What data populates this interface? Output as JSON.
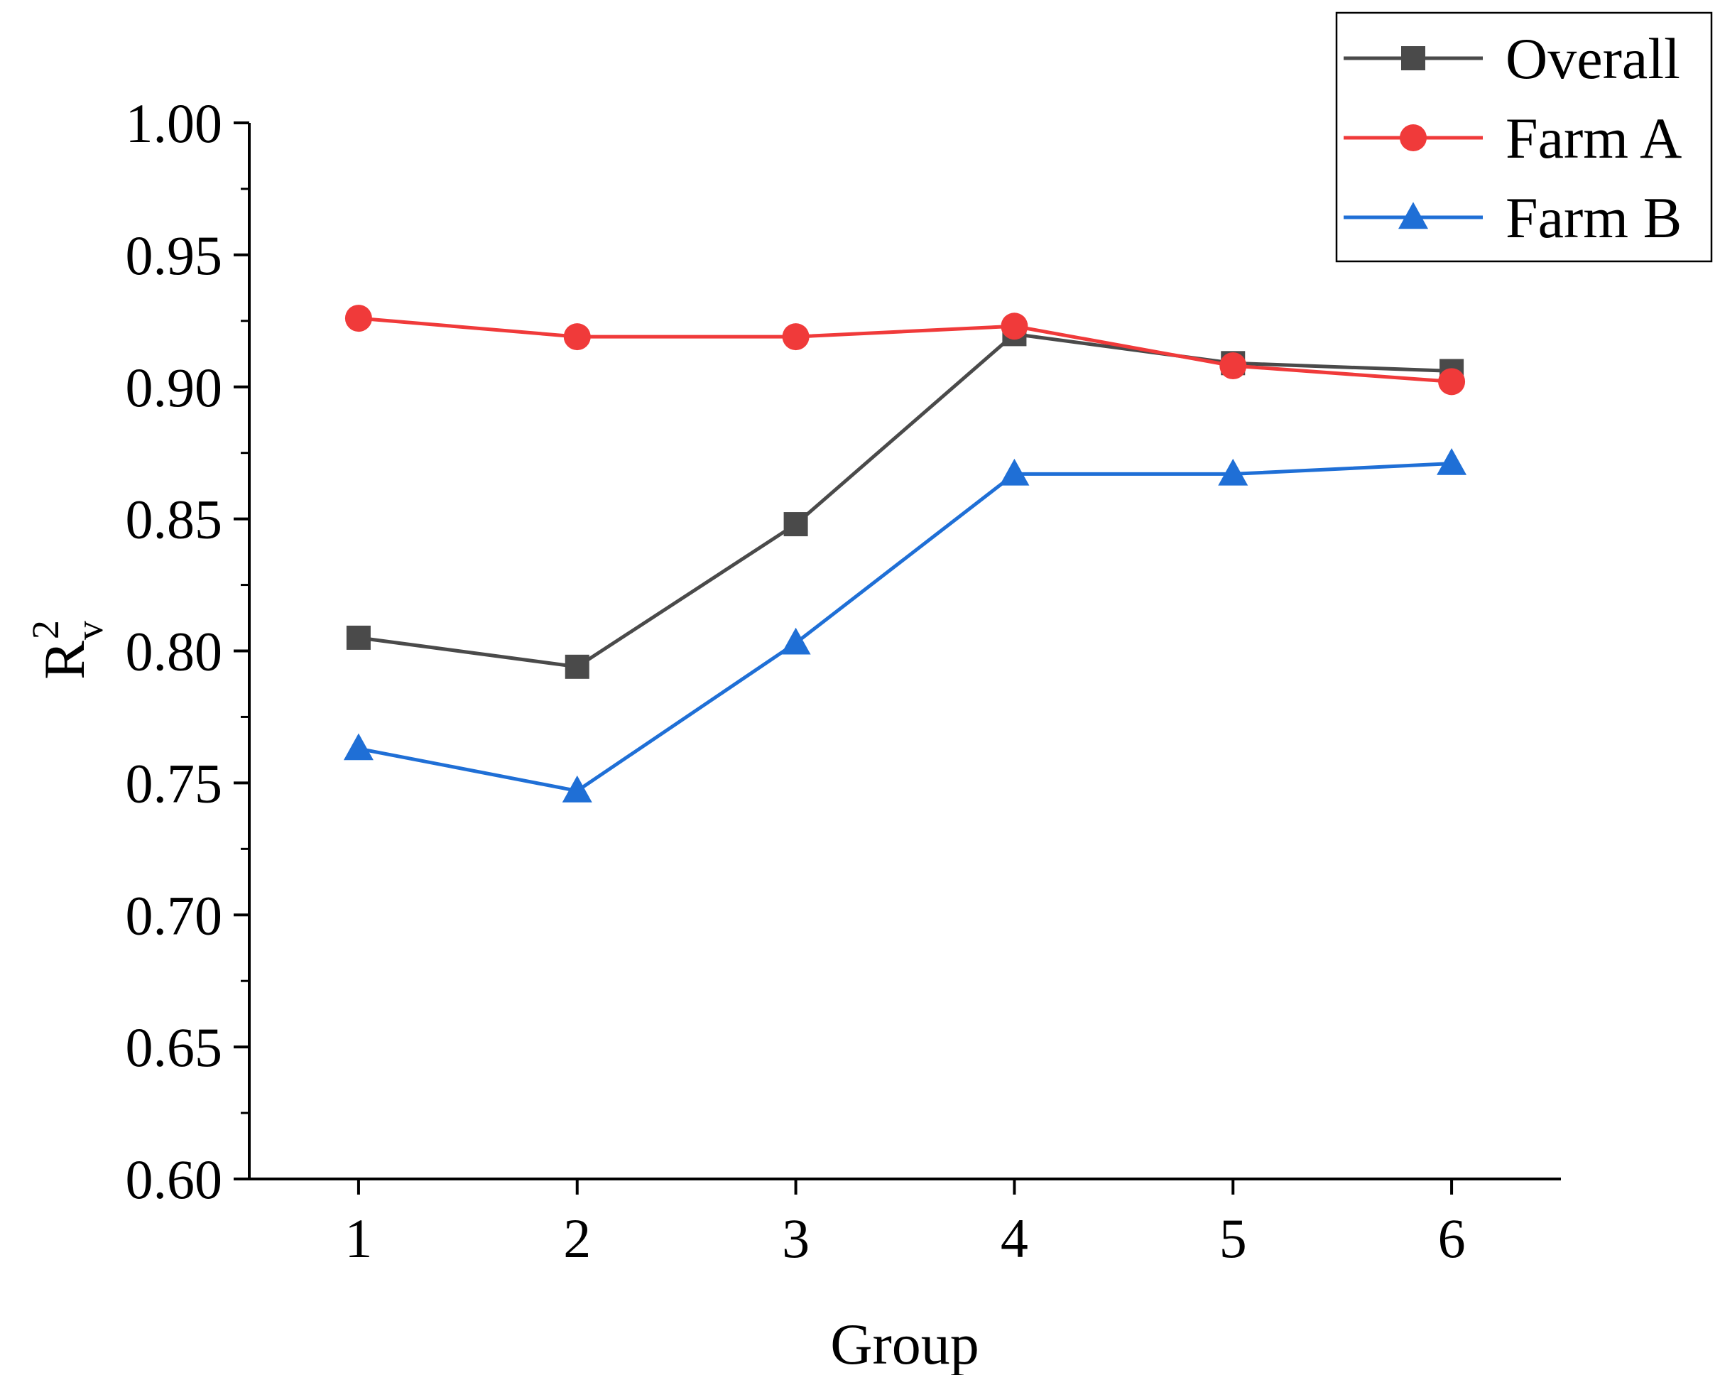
{
  "chart_data": {
    "type": "line",
    "title": "",
    "xlabel": "Group",
    "ylabel": "R",
    "ylabel_sup": "2",
    "ylabel_sub": "v",
    "x": [
      1,
      2,
      3,
      4,
      5,
      6
    ],
    "x_tick_labels": [
      "1",
      "2",
      "3",
      "4",
      "5",
      "6"
    ],
    "xlim": [
      0.5,
      6.5
    ],
    "ylim": [
      0.6,
      1.0
    ],
    "y_ticks": [
      0.6,
      0.65,
      0.7,
      0.75,
      0.8,
      0.85,
      0.9,
      0.95,
      1.0
    ],
    "y_tick_labels": [
      "0.60",
      "0.65",
      "0.70",
      "0.75",
      "0.80",
      "0.85",
      "0.90",
      "0.95",
      "1.00"
    ],
    "grid": false,
    "legend_position": "top-right",
    "series": [
      {
        "name": "Overall",
        "marker": "square",
        "color": "#4a4a4a",
        "values": [
          0.805,
          0.794,
          0.848,
          0.92,
          0.909,
          0.906
        ]
      },
      {
        "name": "Farm A",
        "marker": "circle",
        "color": "#f03a3a",
        "values": [
          0.926,
          0.919,
          0.919,
          0.923,
          0.908,
          0.902
        ]
      },
      {
        "name": "Farm B",
        "marker": "triangle",
        "color": "#1f6fd6",
        "values": [
          0.763,
          0.747,
          0.803,
          0.867,
          0.867,
          0.871
        ]
      }
    ]
  }
}
